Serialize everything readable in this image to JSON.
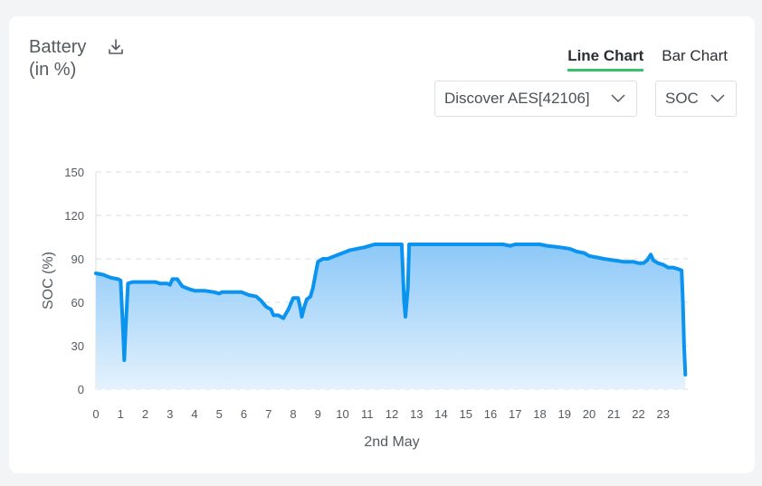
{
  "header": {
    "title_line1": "Battery",
    "title_line2": "(in %)",
    "download_icon": "download-icon"
  },
  "tabs": [
    {
      "label": "Line Chart",
      "active": true
    },
    {
      "label": "Bar Chart",
      "active": false
    }
  ],
  "filters": {
    "device": "Discover AES[42106]",
    "metric": "SOC"
  },
  "colors": {
    "line": "#0a93ef",
    "fill_top": "#8cc8f8",
    "fill_bottom": "#e4f2fd",
    "tab_accent": "#35c26a"
  },
  "chart_data": {
    "type": "area",
    "xlabel": "2nd May",
    "ylabel": "SOC (%)",
    "xlim": [
      0,
      24
    ],
    "ylim": [
      0,
      150
    ],
    "x_ticks": [
      0,
      1,
      2,
      3,
      4,
      5,
      6,
      7,
      8,
      9,
      10,
      11,
      12,
      13,
      14,
      15,
      16,
      17,
      18,
      19,
      20,
      21,
      22,
      23
    ],
    "y_ticks": [
      0,
      30,
      60,
      90,
      120,
      150
    ],
    "grid": "horizontal-dashed",
    "series": [
      {
        "points": [
          [
            0,
            80
          ],
          [
            0.3,
            79
          ],
          [
            0.6,
            77
          ],
          [
            0.9,
            76
          ],
          [
            1.0,
            75
          ],
          [
            1.1,
            40
          ],
          [
            1.15,
            20
          ],
          [
            1.2,
            40
          ],
          [
            1.3,
            73
          ],
          [
            1.5,
            74
          ],
          [
            2.0,
            74
          ],
          [
            2.4,
            74
          ],
          [
            2.6,
            73
          ],
          [
            2.9,
            73
          ],
          [
            3.0,
            72
          ],
          [
            3.1,
            76
          ],
          [
            3.3,
            76
          ],
          [
            3.5,
            71
          ],
          [
            3.8,
            69
          ],
          [
            4.0,
            68
          ],
          [
            4.4,
            68
          ],
          [
            4.8,
            67
          ],
          [
            5.0,
            66
          ],
          [
            5.1,
            67
          ],
          [
            5.5,
            67
          ],
          [
            5.9,
            67
          ],
          [
            6.2,
            65
          ],
          [
            6.5,
            64
          ],
          [
            6.7,
            61
          ],
          [
            6.9,
            57
          ],
          [
            7.1,
            55
          ],
          [
            7.2,
            51
          ],
          [
            7.4,
            51
          ],
          [
            7.6,
            49
          ],
          [
            7.7,
            52
          ],
          [
            7.8,
            55
          ],
          [
            7.9,
            59
          ],
          [
            8.0,
            63
          ],
          [
            8.2,
            63
          ],
          [
            8.3,
            55
          ],
          [
            8.35,
            50
          ],
          [
            8.45,
            57
          ],
          [
            8.55,
            62
          ],
          [
            8.7,
            64
          ],
          [
            8.8,
            70
          ],
          [
            8.9,
            79
          ],
          [
            9.0,
            88
          ],
          [
            9.2,
            90
          ],
          [
            9.4,
            90
          ],
          [
            9.7,
            92
          ],
          [
            10.0,
            94
          ],
          [
            10.3,
            96
          ],
          [
            10.6,
            97
          ],
          [
            10.9,
            98
          ],
          [
            11.1,
            99
          ],
          [
            11.3,
            100
          ],
          [
            11.8,
            100
          ],
          [
            12.3,
            100
          ],
          [
            12.4,
            100
          ],
          [
            12.5,
            60
          ],
          [
            12.55,
            50
          ],
          [
            12.65,
            70
          ],
          [
            12.7,
            100
          ],
          [
            13.0,
            100
          ],
          [
            14.0,
            100
          ],
          [
            15.0,
            100
          ],
          [
            16.0,
            100
          ],
          [
            16.5,
            100
          ],
          [
            16.8,
            99
          ],
          [
            17.0,
            100
          ],
          [
            17.5,
            100
          ],
          [
            18.0,
            100
          ],
          [
            18.3,
            99
          ],
          [
            18.8,
            98
          ],
          [
            19.2,
            97
          ],
          [
            19.5,
            95
          ],
          [
            19.8,
            94
          ],
          [
            20.0,
            92
          ],
          [
            20.3,
            91
          ],
          [
            20.6,
            90
          ],
          [
            21.0,
            89
          ],
          [
            21.4,
            88
          ],
          [
            21.8,
            88
          ],
          [
            22.0,
            87
          ],
          [
            22.2,
            87
          ],
          [
            22.35,
            89
          ],
          [
            22.5,
            93
          ],
          [
            22.6,
            89
          ],
          [
            22.8,
            87
          ],
          [
            23.0,
            86
          ],
          [
            23.2,
            84
          ],
          [
            23.4,
            84
          ],
          [
            23.6,
            83
          ],
          [
            23.75,
            82
          ],
          [
            23.8,
            60
          ],
          [
            23.85,
            30
          ],
          [
            23.9,
            10
          ]
        ]
      }
    ]
  }
}
